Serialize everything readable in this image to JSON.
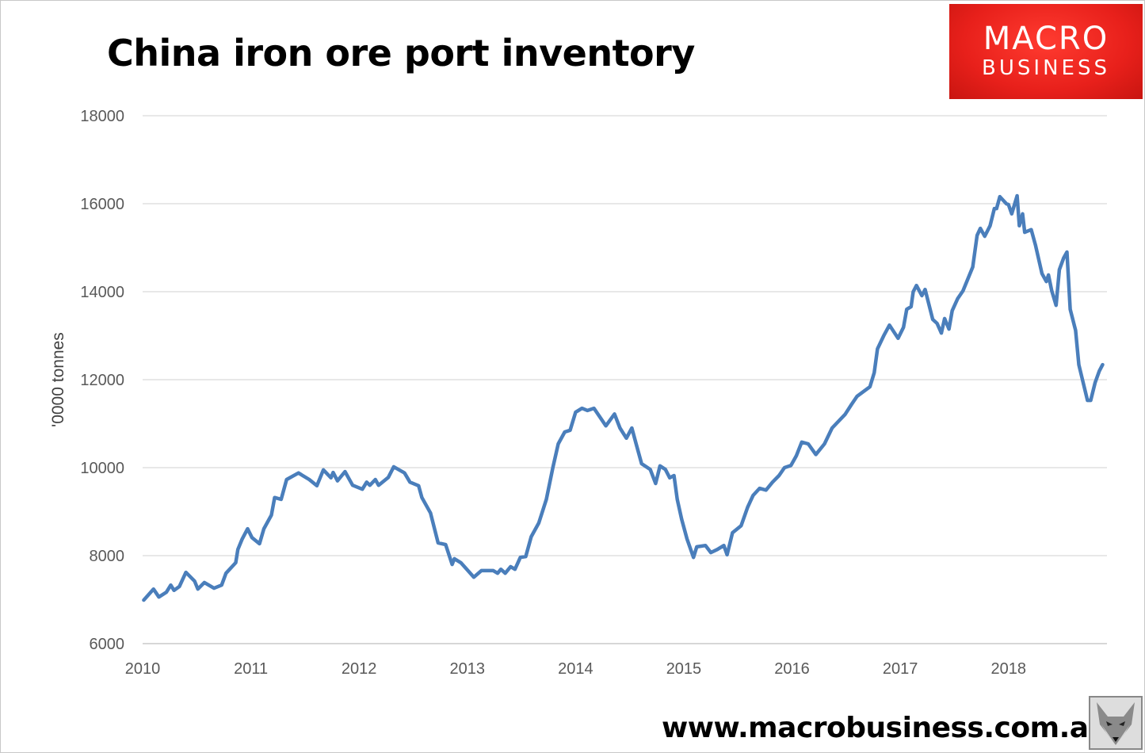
{
  "chart_data": {
    "type": "line",
    "title": "China iron ore port inventory",
    "xlabel": "",
    "ylabel": "'0000 tonnes",
    "xlim": [
      2010,
      2018.91
    ],
    "ylim": [
      6000,
      18000
    ],
    "x_ticks": [
      "2010",
      "2011",
      "2012",
      "2013",
      "2014",
      "2015",
      "2016",
      "2017",
      "2018"
    ],
    "y_ticks": [
      "6000",
      "8000",
      "10000",
      "12000",
      "14000",
      "16000",
      "18000"
    ],
    "grid": true,
    "legend": "none",
    "line_color": "#4a7ebb",
    "series": [
      {
        "x": [
          2010.01,
          2010.1,
          2010.15,
          2010.22,
          2010.26,
          2010.29,
          2010.34,
          2010.4,
          2010.48,
          2010.51,
          2010.57,
          2010.66,
          2010.73,
          2010.77,
          2010.86,
          2010.88,
          2010.92,
          2010.97,
          2011.01,
          2011.08,
          2011.12,
          2011.19,
          2011.22,
          2011.28,
          2011.33,
          2011.44,
          2011.54,
          2011.61,
          2011.67,
          2011.74,
          2011.76,
          2011.8,
          2011.87,
          2011.94,
          2012.03,
          2012.07,
          2012.1,
          2012.15,
          2012.18,
          2012.27,
          2012.32,
          2012.42,
          2012.47,
          2012.55,
          2012.58,
          2012.66,
          2012.73,
          2012.8,
          2012.86,
          2012.88,
          2012.94,
          2013.06,
          2013.13,
          2013.24,
          2013.28,
          2013.31,
          2013.35,
          2013.4,
          2013.44,
          2013.49,
          2013.54,
          2013.59,
          2013.66,
          2013.73,
          2013.79,
          2013.84,
          2013.9,
          2013.95,
          2014.0,
          2014.06,
          2014.11,
          2014.17,
          2014.22,
          2014.28,
          2014.36,
          2014.41,
          2014.47,
          2014.52,
          2014.56,
          2014.61,
          2014.69,
          2014.74,
          2014.78,
          2014.83,
          2014.87,
          2014.91,
          2014.94,
          2014.98,
          2015.03,
          2015.09,
          2015.12,
          2015.2,
          2015.25,
          2015.31,
          2015.37,
          2015.4,
          2015.45,
          2015.53,
          2015.59,
          2015.64,
          2015.7,
          2015.76,
          2015.82,
          2015.88,
          2015.93,
          2015.99,
          2016.04,
          2016.09,
          2016.15,
          2016.22,
          2016.3,
          2016.37,
          2016.49,
          2016.55,
          2016.6,
          2016.72,
          2016.76,
          2016.79,
          2016.85,
          2016.9,
          2016.98,
          2017.03,
          2017.06,
          2017.1,
          2017.12,
          2017.15,
          2017.2,
          2017.23,
          2017.3,
          2017.34,
          2017.38,
          2017.41,
          2017.45,
          2017.48,
          2017.53,
          2017.58,
          2017.64,
          2017.67,
          2017.71,
          2017.74,
          2017.78,
          2017.83,
          2017.87,
          2017.89,
          2017.92,
          2017.98,
          2018.0,
          2018.03,
          2018.08,
          2018.1,
          2018.13,
          2018.15,
          2018.21,
          2018.25,
          2018.31,
          2018.35,
          2018.37,
          2018.4,
          2018.44,
          2018.47,
          2018.51,
          2018.54,
          2018.57,
          2018.62,
          2018.65,
          2018.69,
          2018.73,
          2018.76,
          2018.8,
          2018.84,
          2018.87
        ],
        "y": [
          6990,
          7240,
          7060,
          7170,
          7330,
          7210,
          7300,
          7620,
          7420,
          7240,
          7390,
          7260,
          7330,
          7600,
          7840,
          8140,
          8380,
          8610,
          8410,
          8270,
          8610,
          8920,
          9320,
          9280,
          9730,
          9880,
          9730,
          9590,
          9950,
          9770,
          9890,
          9700,
          9910,
          9600,
          9510,
          9670,
          9600,
          9730,
          9600,
          9780,
          10020,
          9880,
          9670,
          9590,
          9320,
          8970,
          8290,
          8250,
          7800,
          7930,
          7840,
          7510,
          7660,
          7660,
          7600,
          7690,
          7600,
          7750,
          7690,
          7960,
          7980,
          8430,
          8740,
          9280,
          10000,
          10540,
          10810,
          10850,
          11260,
          11350,
          11300,
          11350,
          11170,
          10950,
          11220,
          10900,
          10670,
          10900,
          10540,
          10090,
          9960,
          9640,
          10040,
          9960,
          9770,
          9820,
          9280,
          8830,
          8380,
          7960,
          8200,
          8230,
          8070,
          8140,
          8230,
          8020,
          8520,
          8680,
          9100,
          9370,
          9530,
          9490,
          9670,
          9820,
          10000,
          10050,
          10270,
          10580,
          10540,
          10300,
          10540,
          10900,
          11210,
          11440,
          11620,
          11840,
          12160,
          12700,
          13010,
          13240,
          12940,
          13190,
          13600,
          13660,
          14000,
          14140,
          13910,
          14050,
          13370,
          13280,
          13060,
          13390,
          13150,
          13570,
          13840,
          14020,
          14380,
          14560,
          15280,
          15440,
          15260,
          15500,
          15890,
          15890,
          16160,
          16000,
          15980,
          15770,
          16180,
          15500,
          15770,
          15350,
          15410,
          15050,
          14410,
          14230,
          14380,
          14020,
          13690,
          14500,
          14770,
          14900,
          13600,
          13120,
          12340,
          11930,
          11530,
          11530,
          11930,
          12200,
          12340
        ]
      }
    ]
  },
  "branding": {
    "logo_line1": "MACRO",
    "logo_line2": "BUSINESS",
    "website": "www.macrobusiness.com.au",
    "mascot_icon": "fox-icon"
  }
}
